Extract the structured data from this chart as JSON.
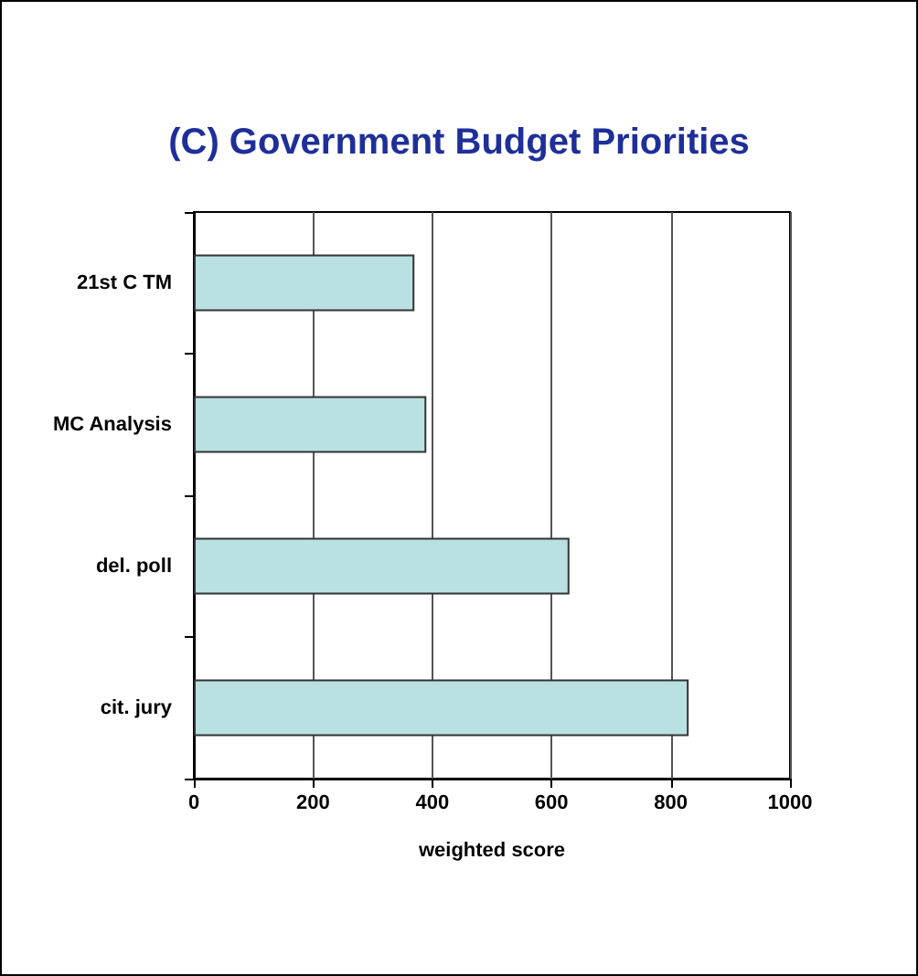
{
  "chart_data": {
    "type": "bar",
    "orientation": "horizontal",
    "title": "(C) Government Budget Priorities",
    "xlabel": "weighted score",
    "categories": [
      "21st C TM",
      "MC Analysis",
      "del. poll",
      "cit. jury"
    ],
    "values": [
      370,
      390,
      630,
      830
    ],
    "color": "#b9e1e2",
    "xlim": [
      0,
      1000
    ],
    "xticks": [
      0,
      200,
      400,
      600,
      800,
      1000
    ],
    "grid": "x"
  }
}
